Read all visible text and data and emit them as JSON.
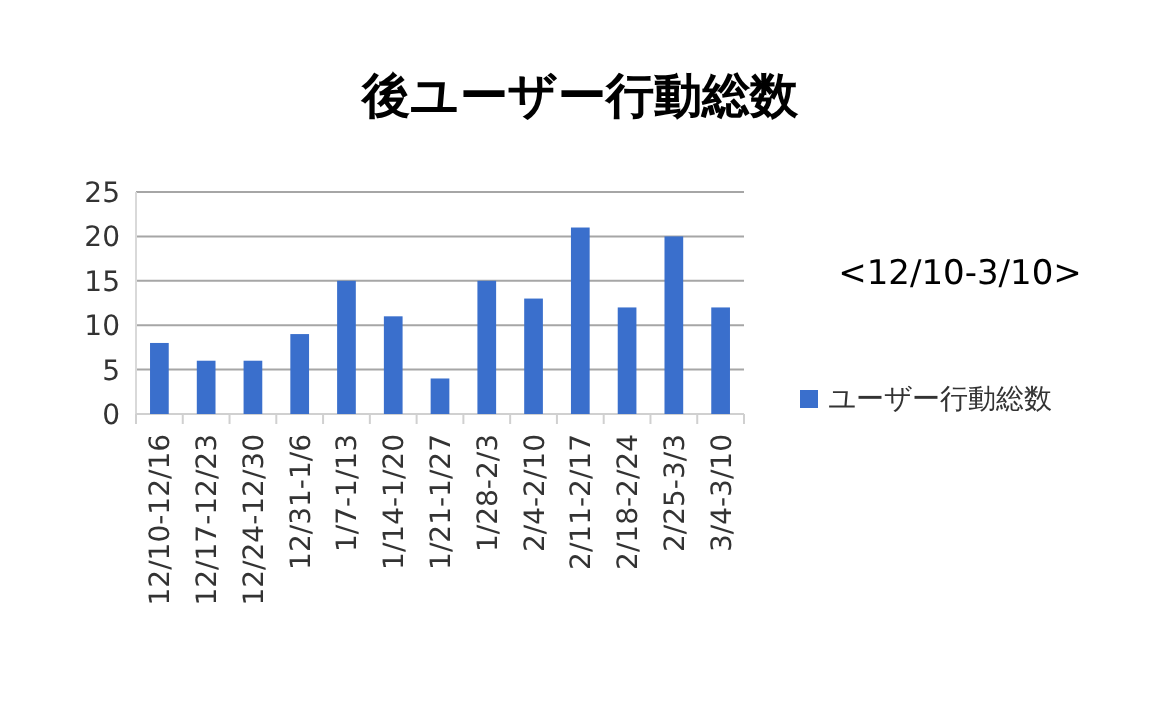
{
  "chart_data": {
    "type": "bar",
    "title": "後ユーザー行動総数",
    "categories": [
      "12/10-12/16",
      "12/17-12/23",
      "12/24-12/30",
      "12/31-1/6",
      "1/7-1/13",
      "1/14-1/20",
      "1/21-1/27",
      "1/28-2/3",
      "2/4-2/10",
      "2/11-2/17",
      "2/18-2/24",
      "2/25-3/3",
      "3/4-3/10"
    ],
    "series": [
      {
        "name": "ユーザー行動総数",
        "color": "#3a6fcc",
        "values": [
          8,
          6,
          6,
          9,
          15,
          11,
          4,
          15,
          13,
          21,
          12,
          20,
          12
        ]
      }
    ],
    "ylim": [
      0,
      25
    ],
    "yticks": [
      0,
      5,
      10,
      15,
      20,
      25
    ],
    "grid": "y",
    "legend": "right",
    "annotations": [
      "<12/10-3/10>"
    ]
  }
}
